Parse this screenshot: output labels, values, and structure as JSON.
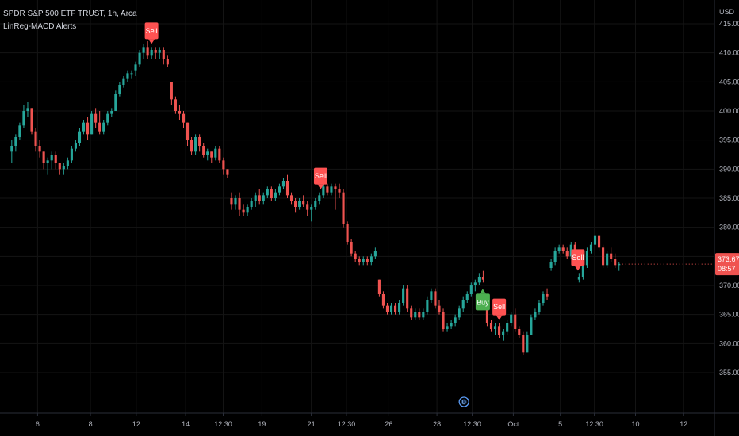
{
  "legend": {
    "symbol_line": "SPDR S&P 500 ETF TRUST, 1h, Arca",
    "indicator": "LinReg-MACD Alerts"
  },
  "currency": "USD",
  "colors": {
    "background": "#000000",
    "up": "#26a69a",
    "down": "#ef5350",
    "sell": "#ff5252",
    "buy": "#4caf50",
    "axis_text": "#b2b5be",
    "grid": "#141414"
  },
  "last_price": {
    "price": "373.67",
    "countdown": "08:57",
    "value": 373.67
  },
  "dividend_marker": {
    "label": "D",
    "x": 39.5
  },
  "chart_data": {
    "type": "candlestick",
    "ylim": [
      352,
      416
    ],
    "xlim": [
      0,
      54
    ],
    "y_ticks": [
      355,
      360,
      365,
      370,
      375,
      380,
      385,
      390,
      395,
      400,
      405,
      410,
      415
    ],
    "y_tick_labels": [
      "355.00",
      "360.00",
      "365.00",
      "370.00",
      "375.00",
      "380.00",
      "385.00",
      "390.00",
      "395.00",
      "400.00",
      "405.00",
      "410.00",
      "415.00"
    ],
    "x_ticks": [
      {
        "label": "6",
        "x": 3.2
      },
      {
        "label": "8",
        "x": 7.7
      },
      {
        "label": "12",
        "x": 11.6
      },
      {
        "label": "14",
        "x": 15.8
      },
      {
        "label": "12:30",
        "x": 19
      },
      {
        "label": "19",
        "x": 22.3
      },
      {
        "label": "21",
        "x": 26.5
      },
      {
        "label": "12:30",
        "x": 29.5
      },
      {
        "label": "26",
        "x": 33.1
      },
      {
        "label": "28",
        "x": 37.2
      },
      {
        "label": "12:30",
        "x": 40.2
      },
      {
        "label": "Oct",
        "x": 43.7
      },
      {
        "label": "5",
        "x": 47.7
      },
      {
        "label": "12:30",
        "x": 50.6
      },
      {
        "label": "10",
        "x": 54.1
      },
      {
        "label": "12",
        "x": 58.2
      }
    ],
    "candles_ohlc": [
      [
        393,
        395,
        391,
        394
      ],
      [
        394,
        396,
        393,
        395.5
      ],
      [
        395.5,
        398,
        395,
        397.5
      ],
      [
        397.5,
        401,
        397,
        400
      ],
      [
        400,
        401.5,
        399,
        400.5
      ],
      [
        400.5,
        400.5,
        396,
        396.5
      ],
      [
        396.5,
        397,
        393,
        394
      ],
      [
        394,
        395,
        392,
        393
      ],
      [
        393,
        393,
        390,
        391
      ],
      [
        391,
        392,
        389,
        391.5
      ],
      [
        391.5,
        393,
        390,
        392.5
      ],
      [
        392.5,
        393,
        390,
        391
      ],
      [
        391,
        391,
        389,
        390
      ],
      [
        390,
        391,
        389,
        390.5
      ],
      [
        390.5,
        392,
        390,
        391.5
      ],
      [
        391.5,
        394,
        391,
        393.5
      ],
      [
        393.5,
        395,
        393,
        394.5
      ],
      [
        394.5,
        397,
        394,
        396.5
      ],
      [
        396.5,
        398.5,
        396,
        398
      ],
      [
        398,
        399,
        395,
        396
      ],
      [
        396,
        400,
        396,
        399.5
      ],
      [
        399.5,
        400.5,
        397,
        398
      ],
      [
        398,
        400,
        396,
        396.5
      ],
      [
        396.5,
        398.5,
        396,
        398
      ],
      [
        398,
        400,
        397.5,
        399.5
      ],
      [
        399.5,
        400.5,
        399,
        400
      ],
      [
        400,
        403.5,
        400,
        403
      ],
      [
        403,
        405,
        402.5,
        404.5
      ],
      [
        404.5,
        406,
        404,
        405.5
      ],
      [
        405.5,
        407,
        405,
        406.5
      ],
      [
        406.5,
        407,
        405.5,
        406.5
      ],
      [
        407,
        408.5,
        406,
        408
      ],
      [
        408,
        410.5,
        407.5,
        410
      ],
      [
        410,
        411.5,
        409,
        411
      ],
      [
        411,
        412,
        409,
        409.5
      ],
      [
        409.5,
        411,
        409,
        410.5
      ],
      [
        410.5,
        411,
        409,
        410
      ],
      [
        410,
        411,
        409,
        410.5
      ],
      [
        410.5,
        411,
        408,
        409
      ],
      [
        409,
        409.5,
        407.5,
        408
      ],
      [
        405,
        405,
        401,
        402
      ],
      [
        402,
        402.5,
        399.5,
        400
      ],
      [
        400,
        401,
        398.5,
        399.5
      ],
      [
        399.5,
        400,
        397,
        398
      ],
      [
        398,
        398,
        394,
        395
      ],
      [
        395,
        395.5,
        392.5,
        393
      ],
      [
        393,
        396,
        392.5,
        395.5
      ],
      [
        395.5,
        396,
        393,
        394
      ],
      [
        394,
        394.5,
        392,
        392.5
      ],
      [
        392.5,
        393.5,
        391.5,
        393
      ],
      [
        393,
        393,
        391,
        392
      ],
      [
        392,
        394,
        391.5,
        393.5
      ],
      [
        393.5,
        394,
        391,
        391.5
      ],
      [
        391.5,
        392,
        389,
        390
      ],
      [
        390,
        390,
        388.5,
        389
      ],
      [
        385,
        386,
        383,
        384
      ],
      [
        384,
        385.5,
        383,
        385
      ],
      [
        385,
        386,
        382,
        383
      ],
      [
        383,
        384,
        382,
        382.5
      ],
      [
        382.5,
        384,
        382,
        383.5
      ],
      [
        383.5,
        385,
        383,
        384.5
      ],
      [
        384.5,
        386,
        383.5,
        385.5
      ],
      [
        385.5,
        386.5,
        384,
        384.5
      ],
      [
        384.5,
        386,
        384,
        385.5
      ],
      [
        385.5,
        387,
        385,
        386.5
      ],
      [
        386.5,
        387,
        384.5,
        385
      ],
      [
        385,
        386.5,
        384.5,
        386
      ],
      [
        386,
        387.5,
        385.5,
        387
      ],
      [
        387,
        388.5,
        386.5,
        388
      ],
      [
        388,
        389,
        385,
        385.5
      ],
      [
        385.5,
        386,
        384,
        384.5
      ],
      [
        384.5,
        385,
        382.5,
        383.5
      ],
      [
        383.5,
        385,
        383,
        384.5
      ],
      [
        384.5,
        385.5,
        383.5,
        384
      ],
      [
        384,
        384.5,
        382,
        383
      ],
      [
        383,
        384,
        381,
        383.5
      ],
      [
        383.5,
        385,
        383,
        384.5
      ],
      [
        384.5,
        386,
        384,
        385.5
      ],
      [
        385.5,
        387.5,
        385,
        387
      ],
      [
        387,
        387.5,
        385.5,
        386
      ],
      [
        386,
        387.5,
        385.5,
        387
      ],
      [
        387,
        387.5,
        383,
        386.5
      ],
      [
        386.5,
        387.5,
        385,
        386
      ],
      [
        386,
        386.5,
        380,
        380.5
      ],
      [
        380.5,
        381,
        377,
        377.5
      ],
      [
        377.5,
        378,
        375,
        375.5
      ],
      [
        375.5,
        376,
        374,
        374.5
      ],
      [
        374.5,
        375,
        373.5,
        374
      ],
      [
        374,
        375,
        373.5,
        374.5
      ],
      [
        374.5,
        375,
        373.5,
        374
      ],
      [
        374,
        375.5,
        373.5,
        375
      ],
      [
        375,
        376.5,
        374.5,
        376
      ],
      [
        371,
        371,
        368,
        368.5
      ],
      [
        368.5,
        369,
        366,
        366.5
      ],
      [
        366.5,
        367,
        365,
        365.5
      ],
      [
        365.5,
        367,
        365,
        366.5
      ],
      [
        366.5,
        367,
        365,
        365.5
      ],
      [
        365.5,
        367.5,
        365,
        367
      ],
      [
        367,
        370,
        366.5,
        369.5
      ],
      [
        369.5,
        370,
        365.5,
        366
      ],
      [
        366,
        366.5,
        364,
        364.5
      ],
      [
        364.5,
        366,
        364,
        365.5
      ],
      [
        365.5,
        366,
        364,
        364.5
      ],
      [
        364.5,
        366,
        364,
        365.5
      ],
      [
        365.5,
        368,
        365,
        367.5
      ],
      [
        367.5,
        369.5,
        367,
        369
      ],
      [
        369,
        369.5,
        366,
        366.5
      ],
      [
        366.5,
        367.5,
        365,
        365.5
      ],
      [
        365.5,
        366,
        362,
        362.5
      ],
      [
        362.5,
        363.5,
        362,
        363
      ],
      [
        363,
        364,
        362.5,
        363.5
      ],
      [
        363.5,
        365,
        363,
        364.5
      ],
      [
        364.5,
        366.5,
        364,
        366
      ],
      [
        366,
        368,
        365.5,
        367.5
      ],
      [
        367.5,
        369,
        367,
        368.5
      ],
      [
        368.5,
        370.5,
        368,
        370
      ],
      [
        370,
        371,
        369,
        370.5
      ],
      [
        370.5,
        372,
        370,
        371.5
      ],
      [
        371.5,
        372.5,
        370.5,
        371
      ],
      [
        367,
        367,
        363,
        363.5
      ],
      [
        363.5,
        364,
        362,
        362.5
      ],
      [
        362.5,
        363.5,
        361.5,
        363
      ],
      [
        363,
        363.5,
        361,
        361.5
      ],
      [
        361.5,
        362.5,
        360.5,
        362
      ],
      [
        362,
        364,
        361.5,
        363.5
      ],
      [
        363.5,
        365.5,
        363,
        365
      ],
      [
        365,
        366,
        362,
        362.5
      ],
      [
        362.5,
        363,
        361,
        361.5
      ],
      [
        361.5,
        362,
        358,
        358.5
      ],
      [
        358.5,
        362,
        358.5,
        361.5
      ],
      [
        361.5,
        365,
        361.5,
        364.5
      ],
      [
        364.5,
        366,
        364,
        365.5
      ],
      [
        365.5,
        367.5,
        365,
        367
      ],
      [
        367,
        369,
        366.5,
        368.5
      ],
      [
        368.5,
        369.5,
        367.5,
        368
      ],
      [
        373,
        374.5,
        372.5,
        374
      ],
      [
        374,
        376.5,
        373.5,
        376
      ],
      [
        376,
        377,
        375.5,
        376.5
      ],
      [
        376.5,
        377,
        375.5,
        376
      ],
      [
        376,
        376.5,
        374.5,
        375
      ],
      [
        375,
        377.5,
        374.5,
        377
      ],
      [
        377,
        377.5,
        375,
        375.5
      ],
      [
        371,
        372,
        370.5,
        371.5
      ],
      [
        371.5,
        374,
        371,
        373.5
      ],
      [
        373.5,
        376.5,
        373,
        376
      ],
      [
        376,
        377.5,
        375.5,
        377
      ],
      [
        377,
        379,
        376.5,
        378.5
      ],
      [
        378.5,
        378.5,
        376,
        376.5
      ],
      [
        376.5,
        377,
        373,
        373.5
      ],
      [
        373.5,
        376,
        373,
        375.5
      ],
      [
        375.5,
        376.5,
        374,
        374.5
      ],
      [
        374.5,
        375.5,
        373,
        373.5
      ],
      [
        373.5,
        374,
        372.5,
        373.67
      ]
    ],
    "signals": [
      {
        "label": "Sell",
        "type": "sell",
        "x": 12.9
      },
      {
        "label": "Sell",
        "type": "sell",
        "x": 27.3
      },
      {
        "label": "Buy",
        "type": "buy",
        "x": 41.1
      },
      {
        "label": "Sell",
        "type": "sell",
        "x": 42.5
      },
      {
        "label": "Sell",
        "type": "sell",
        "x": 49.2
      }
    ]
  }
}
